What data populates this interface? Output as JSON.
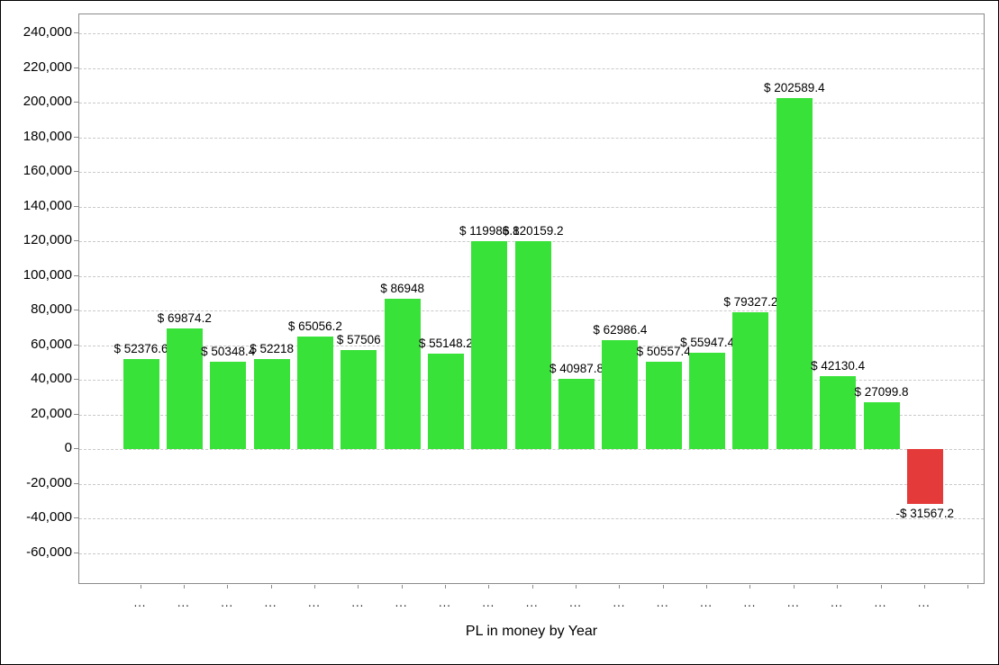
{
  "chart_data": {
    "type": "bar",
    "title": "PL in money by Year",
    "xlabel": "PL in money by Year",
    "ylabel": "",
    "legend_position": "none",
    "grid": "dashed-horizontal",
    "categories": [
      "...",
      "...",
      "...",
      "...",
      "...",
      "...",
      "...",
      "...",
      "...",
      "...",
      "...",
      "...",
      "...",
      "...",
      "...",
      "...",
      "...",
      "...",
      "..."
    ],
    "values": [
      52376.6,
      69874.2,
      50348.4,
      52218,
      65056.2,
      57506,
      86948,
      55148.2,
      119986.8,
      120159.2,
      40987.8,
      62986.4,
      50557.4,
      55947.4,
      79327.2,
      202589.4,
      42130.4,
      27099.8,
      -31567.2
    ],
    "bar_labels": [
      "$ 52376.6",
      "$ 69874.2",
      "$ 50348.4",
      "$ 52218",
      "$ 65056.2",
      "$ 57506",
      "$ 86948",
      "$ 55148.2",
      "$ 119986.8",
      "$ 120159.2",
      "$ 40987.8",
      "$ 62986.4",
      "$ 50557.4",
      "$ 55947.4",
      "$ 79327.2",
      "$ 202589.4",
      "$ 42130.4",
      "$ 27099.8",
      "-$ 31567.2"
    ],
    "y_axis": {
      "tick_values": [
        240000,
        220000,
        200000,
        180000,
        160000,
        140000,
        120000,
        100000,
        80000,
        60000,
        40000,
        20000,
        0,
        -20000,
        -40000,
        -60000
      ],
      "tick_labels": [
        "240,000",
        "220,000",
        "200,000",
        "180,000",
        "160,000",
        "140,000",
        "120,000",
        "100,000",
        "80,000",
        "60,000",
        "40,000",
        "20,000",
        "0",
        "-20,000",
        "-40,000",
        "-60,000"
      ],
      "range": [
        -78200,
        251000
      ]
    },
    "colors": {
      "positive_bar": "#39e239",
      "negative_bar": "#e43a3a",
      "gridline": "#c9c9c9",
      "axis": "#8a8a8a",
      "text": "#000000"
    }
  }
}
